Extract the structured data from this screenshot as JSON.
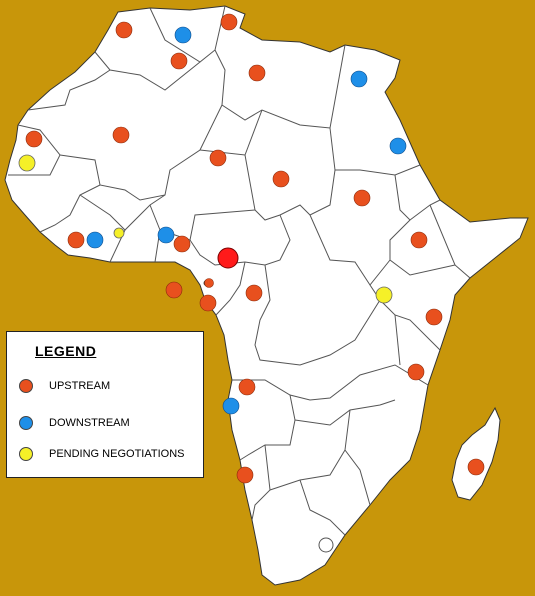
{
  "legend": {
    "title": "LEGEND",
    "items": [
      {
        "key": "upstream",
        "label": "UPSTREAM",
        "color": "#e8501e"
      },
      {
        "key": "downstream",
        "label": "DOWNSTREAM",
        "color": "#1e8fe8"
      },
      {
        "key": "pending",
        "label": "PENDING NEGOTIATIONS",
        "color": "#f5f028"
      }
    ]
  },
  "colors": {
    "ocean": "#c8960a",
    "land": "#ffffff",
    "border": "#555555",
    "highlight": "#ff1a1a"
  }
}
